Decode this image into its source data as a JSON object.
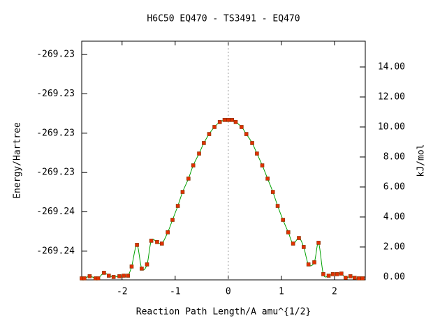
{
  "chart_data": {
    "type": "line",
    "title": "H6C50   EQ470 - TS3491 - EQ470",
    "x_label": "Reaction Path Length/A amu^{1/2}",
    "y_label": "Energy/Hartree",
    "y2_label": "kJ/mol",
    "x": [
      -2.76,
      -2.71,
      -2.61,
      -2.5,
      -2.45,
      -2.34,
      -2.25,
      -2.16,
      -2.05,
      -1.97,
      -1.89,
      -1.82,
      -1.72,
      -1.63,
      -1.53,
      -1.45,
      -1.34,
      -1.25,
      -1.14,
      -1.05,
      -0.95,
      -0.86,
      -0.75,
      -0.66,
      -0.55,
      -0.46,
      -0.36,
      -0.26,
      -0.16,
      -0.07,
      0,
      0.07,
      0.14,
      0.25,
      0.34,
      0.45,
      0.54,
      0.64,
      0.74,
      0.84,
      0.93,
      1.03,
      1.13,
      1.22,
      1.33,
      1.42,
      1.51,
      1.62,
      1.7,
      1.79,
      1.89,
      1.97,
      2.05,
      2.13,
      2.21,
      2.3,
      2.38,
      2.46,
      2.53
    ],
    "series": [
      {
        "name": "kJ/mol",
        "axis": "y2",
        "color": "#00a000",
        "marker_color": "#e03000",
        "values": [
          -0.09,
          -0.09,
          0.05,
          -0.09,
          -0.09,
          0.28,
          0.09,
          0,
          0.05,
          0.09,
          0.09,
          0.7,
          2.14,
          0.56,
          0.84,
          2.42,
          2.33,
          2.23,
          2.98,
          3.81,
          4.74,
          5.67,
          6.56,
          7.44,
          8.23,
          8.93,
          9.53,
          10.0,
          10.33,
          10.47,
          10.47,
          10.47,
          10.33,
          10.0,
          9.53,
          8.93,
          8.23,
          7.44,
          6.56,
          5.67,
          4.74,
          3.81,
          2.98,
          2.23,
          2.6,
          2.0,
          0.84,
          0.98,
          2.28,
          0.19,
          0.09,
          0.19,
          0.19,
          0.23,
          -0.05,
          0.05,
          -0.05,
          -0.09,
          -0.09
        ]
      }
    ],
    "xlim": [
      -2.76,
      2.58
    ],
    "xticks": [
      -2,
      -1,
      0,
      1,
      2
    ],
    "ylim": [
      -269.23683,
      -269.23076
    ],
    "yticks": [
      {
        "value": -269.2361,
        "label": "-269.24"
      },
      {
        "value": -269.2351,
        "label": "-269.24"
      },
      {
        "value": -269.2341,
        "label": "-269.23"
      },
      {
        "value": -269.2331,
        "label": "-269.23"
      },
      {
        "value": -269.2321,
        "label": "-269.23"
      },
      {
        "value": -269.2311,
        "label": "-269.23"
      }
    ],
    "y2lim": [
      -0.19,
      15.72
    ],
    "y2ticks": [
      {
        "value": 0,
        "label": "0.00"
      },
      {
        "value": 2,
        "label": "2.00"
      },
      {
        "value": 4,
        "label": "4.00"
      },
      {
        "value": 6,
        "label": "6.00"
      },
      {
        "value": 8,
        "label": "8.00"
      },
      {
        "value": 10,
        "label": "10.00"
      },
      {
        "value": 12,
        "label": "12.00"
      },
      {
        "value": 14,
        "label": "14.00"
      }
    ],
    "vline": 0
  }
}
